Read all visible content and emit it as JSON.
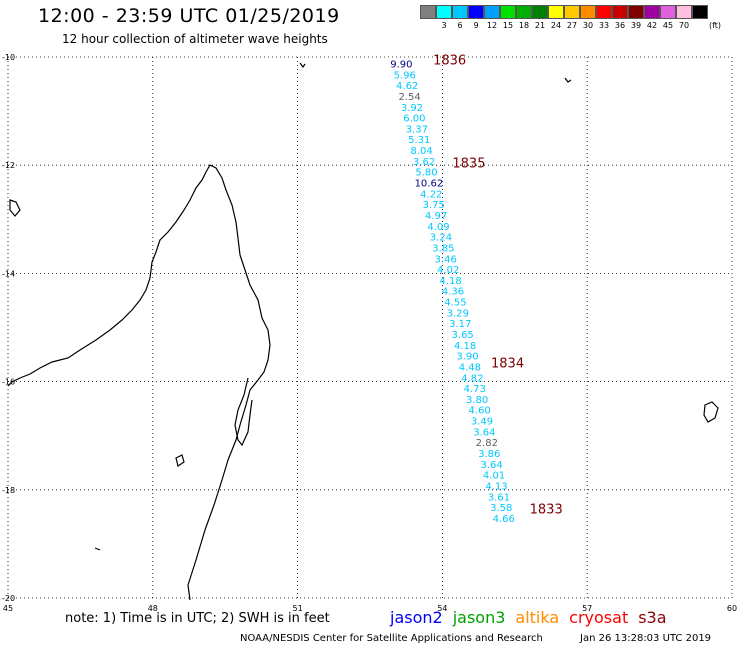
{
  "header": {
    "title": "12:00 - 23:59 UTC 01/25/2019",
    "subtitle": "12 hour collection of altimeter wave heights"
  },
  "legend": {
    "swatches": [
      {
        "label": "",
        "color": "#808080"
      },
      {
        "label": "3",
        "color": "#00ffff"
      },
      {
        "label": "6",
        "color": "#00c8ff"
      },
      {
        "label": "9",
        "color": "#0000ff"
      },
      {
        "label": "12",
        "color": "#00a0ff"
      },
      {
        "label": "15",
        "color": "#00e000"
      },
      {
        "label": "18",
        "color": "#00b000"
      },
      {
        "label": "21",
        "color": "#008000"
      },
      {
        "label": "24",
        "color": "#ffff00"
      },
      {
        "label": "27",
        "color": "#ffc800"
      },
      {
        "label": "30",
        "color": "#ff8c00"
      },
      {
        "label": "33",
        "color": "#ff0000"
      },
      {
        "label": "36",
        "color": "#c80000"
      },
      {
        "label": "39",
        "color": "#800000"
      },
      {
        "label": "42",
        "color": "#a000a0"
      },
      {
        "label": "45",
        "color": "#e060e0"
      },
      {
        "label": "70",
        "color": "#ffc0e0"
      },
      {
        "label": "",
        "color": "#000000"
      }
    ],
    "unit": "(ft)"
  },
  "map": {
    "lon_range": [
      45,
      60
    ],
    "lat_range": [
      -20,
      -10
    ],
    "grid": "dotted",
    "lon_ticks": [
      "45",
      "48",
      "51",
      "54",
      "57",
      "60"
    ],
    "lat_ticks": [
      "-10",
      "-12",
      "-14",
      "-16",
      "-18",
      "-20"
    ],
    "observations": [
      {
        "lat": -10.12,
        "lon": 53.15,
        "value": "9.90",
        "color": "#000080"
      },
      {
        "lat": -10.32,
        "lon": 53.22,
        "value": "5.96",
        "color": "#00c8ff"
      },
      {
        "lat": -10.52,
        "lon": 53.27,
        "value": "4.62",
        "color": "#00c8ff"
      },
      {
        "lat": -10.72,
        "lon": 53.32,
        "value": "2.54",
        "color": "#606060"
      },
      {
        "lat": -10.92,
        "lon": 53.37,
        "value": "3.92",
        "color": "#00c8ff"
      },
      {
        "lat": -11.12,
        "lon": 53.42,
        "value": "6.00",
        "color": "#00c8ff"
      },
      {
        "lat": -11.32,
        "lon": 53.47,
        "value": "3.37",
        "color": "#00c8ff"
      },
      {
        "lat": -11.52,
        "lon": 53.52,
        "value": "5.31",
        "color": "#00c8ff"
      },
      {
        "lat": -11.72,
        "lon": 53.57,
        "value": "8.04",
        "color": "#00c8ff"
      },
      {
        "lat": -11.92,
        "lon": 53.62,
        "value": "3.62",
        "color": "#00c8ff"
      },
      {
        "lat": -12.12,
        "lon": 53.67,
        "value": "5.80",
        "color": "#00c8ff"
      },
      {
        "lat": -12.32,
        "lon": 53.72,
        "value": "10.62",
        "color": "#000080"
      },
      {
        "lat": -12.52,
        "lon": 53.77,
        "value": "4.22",
        "color": "#00c8ff"
      },
      {
        "lat": -12.72,
        "lon": 53.82,
        "value": "3.75",
        "color": "#00c8ff"
      },
      {
        "lat": -12.92,
        "lon": 53.87,
        "value": "4.97",
        "color": "#00c8ff"
      },
      {
        "lat": -13.12,
        "lon": 53.92,
        "value": "4.09",
        "color": "#00c8ff"
      },
      {
        "lat": -13.32,
        "lon": 53.97,
        "value": "3.24",
        "color": "#00c8ff"
      },
      {
        "lat": -13.52,
        "lon": 54.02,
        "value": "3.85",
        "color": "#00c8ff"
      },
      {
        "lat": -13.72,
        "lon": 54.07,
        "value": "3.46",
        "color": "#00c8ff"
      },
      {
        "lat": -13.92,
        "lon": 54.12,
        "value": "4.02",
        "color": "#00c8ff"
      },
      {
        "lat": -14.12,
        "lon": 54.17,
        "value": "4.18",
        "color": "#00c8ff"
      },
      {
        "lat": -14.32,
        "lon": 54.22,
        "value": "4.36",
        "color": "#00c8ff"
      },
      {
        "lat": -14.52,
        "lon": 54.27,
        "value": "4.55",
        "color": "#00c8ff"
      },
      {
        "lat": -14.72,
        "lon": 54.32,
        "value": "3.29",
        "color": "#00c8ff"
      },
      {
        "lat": -14.92,
        "lon": 54.37,
        "value": "3.17",
        "color": "#00c8ff"
      },
      {
        "lat": -15.12,
        "lon": 54.42,
        "value": "3.65",
        "color": "#00c8ff"
      },
      {
        "lat": -15.32,
        "lon": 54.47,
        "value": "4.18",
        "color": "#00c8ff"
      },
      {
        "lat": -15.52,
        "lon": 54.52,
        "value": "3.90",
        "color": "#00c8ff"
      },
      {
        "lat": -15.72,
        "lon": 54.57,
        "value": "4.48",
        "color": "#00c8ff"
      },
      {
        "lat": -15.92,
        "lon": 54.62,
        "value": "4.82",
        "color": "#00c8ff"
      },
      {
        "lat": -16.12,
        "lon": 54.67,
        "value": "4.73",
        "color": "#00c8ff"
      },
      {
        "lat": -16.32,
        "lon": 54.72,
        "value": "3.80",
        "color": "#00c8ff"
      },
      {
        "lat": -16.52,
        "lon": 54.77,
        "value": "4.60",
        "color": "#00c8ff"
      },
      {
        "lat": -16.72,
        "lon": 54.82,
        "value": "3.49",
        "color": "#00c8ff"
      },
      {
        "lat": -16.92,
        "lon": 54.87,
        "value": "3.64",
        "color": "#00c8ff"
      },
      {
        "lat": -17.12,
        "lon": 54.92,
        "value": "2.82",
        "color": "#606060"
      },
      {
        "lat": -17.32,
        "lon": 54.97,
        "value": "3.86",
        "color": "#00c8ff"
      },
      {
        "lat": -17.52,
        "lon": 55.02,
        "value": "3.64",
        "color": "#00c8ff"
      },
      {
        "lat": -17.72,
        "lon": 55.07,
        "value": "4.01",
        "color": "#00c8ff"
      },
      {
        "lat": -17.92,
        "lon": 55.12,
        "value": "4.13",
        "color": "#00c8ff"
      },
      {
        "lat": -18.12,
        "lon": 55.17,
        "value": "3.61",
        "color": "#00c8ff"
      },
      {
        "lat": -18.32,
        "lon": 55.22,
        "value": "3.58",
        "color": "#00c8ff"
      },
      {
        "lat": -18.52,
        "lon": 55.27,
        "value": "4.66",
        "color": "#00c8ff"
      }
    ],
    "rev_labels": [
      {
        "lat": -10.05,
        "lon": 54.15,
        "text": "1836"
      },
      {
        "lat": -11.95,
        "lon": 54.55,
        "text": "1835"
      },
      {
        "lat": -15.65,
        "lon": 55.35,
        "text": "1834"
      },
      {
        "lat": -18.35,
        "lon": 56.15,
        "text": "1833"
      }
    ]
  },
  "footer": {
    "note": "note:  1) Time is in UTC;  2) SWH is in feet",
    "satellites": [
      {
        "name": "jason2",
        "color": "#0000ff"
      },
      {
        "name": "jason3",
        "color": "#00a000"
      },
      {
        "name": "altika",
        "color": "#ff8c00"
      },
      {
        "name": "cryosat",
        "color": "#ff0000"
      },
      {
        "name": "s3a",
        "color": "#8b0000"
      }
    ],
    "credit": "NOAA/NESDIS Center for Satellite Applications and Research",
    "timestamp": "Jan 26 13:28:03 UTC 2019"
  }
}
